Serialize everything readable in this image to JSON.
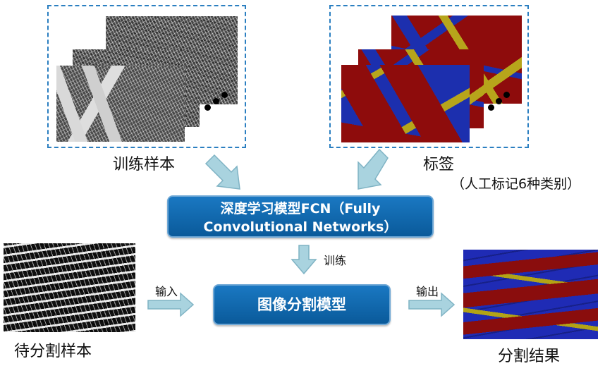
{
  "top_left": {
    "caption": "训练样本"
  },
  "top_right": {
    "caption": "标签",
    "note": "（人工标记6种类别）"
  },
  "fcn_box": {
    "line1": "深度学习模型FCN（Fully",
    "line2": "Convolutional Networks）"
  },
  "train_arrow": {
    "label": "训练"
  },
  "input_arrow": {
    "label": "输入"
  },
  "output_arrow": {
    "label": "输出"
  },
  "model_box": {
    "label": "图像分割模型"
  },
  "bottom_left": {
    "caption": "待分割样本"
  },
  "bottom_right": {
    "caption": "分割结果"
  },
  "colors": {
    "frame": "#2b7fc1",
    "box": "#0a67ad",
    "arrow": "#a9d3df",
    "arrow_edge": "#7fb3c4",
    "seg_red": "#8e0c0c",
    "seg_blue": "#1c2fae",
    "seg_olive": "#b7a51b"
  }
}
